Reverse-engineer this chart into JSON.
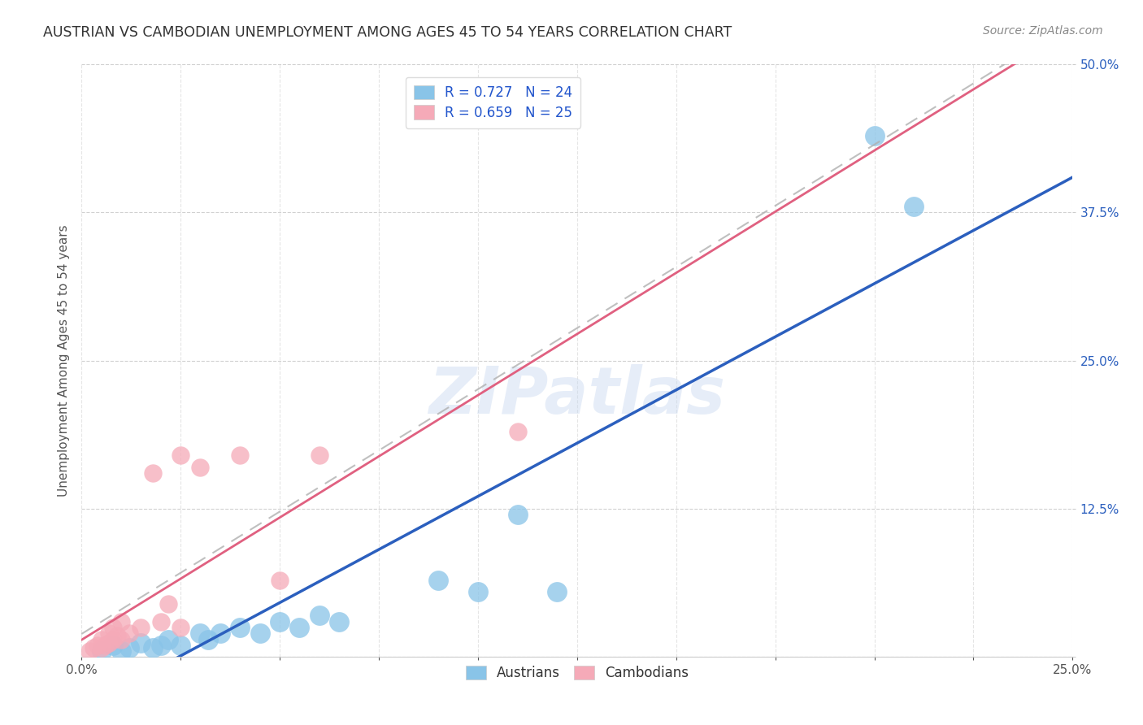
{
  "title": "AUSTRIAN VS CAMBODIAN UNEMPLOYMENT AMONG AGES 45 TO 54 YEARS CORRELATION CHART",
  "source": "Source: ZipAtlas.com",
  "ylabel": "Unemployment Among Ages 45 to 54 years",
  "xlim": [
    0.0,
    0.25
  ],
  "ylim": [
    0.0,
    0.5
  ],
  "xticks": [
    0.0,
    0.025,
    0.05,
    0.075,
    0.1,
    0.125,
    0.15,
    0.175,
    0.2,
    0.225,
    0.25
  ],
  "ytick_positions": [
    0.0,
    0.125,
    0.25,
    0.375,
    0.5
  ],
  "ytick_labels": [
    "",
    "12.5%",
    "25.0%",
    "37.5%",
    "50.0%"
  ],
  "austrians_x": [
    0.005,
    0.008,
    0.01,
    0.012,
    0.015,
    0.018,
    0.02,
    0.022,
    0.025,
    0.03,
    0.032,
    0.035,
    0.04,
    0.045,
    0.05,
    0.055,
    0.06,
    0.065,
    0.09,
    0.1,
    0.11,
    0.12,
    0.2,
    0.21
  ],
  "austrians_y": [
    0.005,
    0.01,
    0.005,
    0.008,
    0.012,
    0.008,
    0.01,
    0.015,
    0.01,
    0.02,
    0.015,
    0.02,
    0.025,
    0.02,
    0.03,
    0.025,
    0.035,
    0.03,
    0.065,
    0.055,
    0.12,
    0.055,
    0.44,
    0.38
  ],
  "cambodians_x": [
    0.002,
    0.003,
    0.004,
    0.005,
    0.005,
    0.006,
    0.007,
    0.007,
    0.008,
    0.008,
    0.009,
    0.01,
    0.01,
    0.012,
    0.015,
    0.018,
    0.02,
    0.022,
    0.025,
    0.025,
    0.03,
    0.04,
    0.05,
    0.06,
    0.11
  ],
  "cambodians_y": [
    0.005,
    0.008,
    0.01,
    0.008,
    0.015,
    0.01,
    0.012,
    0.02,
    0.015,
    0.025,
    0.018,
    0.015,
    0.03,
    0.02,
    0.025,
    0.155,
    0.03,
    0.045,
    0.025,
    0.17,
    0.16,
    0.17,
    0.065,
    0.17,
    0.19
  ],
  "R_austrians": 0.727,
  "N_austrians": 24,
  "R_cambodians": 0.659,
  "N_cambodians": 25,
  "blue_scatter_color": "#89c4e8",
  "pink_scatter_color": "#f5aab8",
  "blue_line_color": "#2b5fbe",
  "pink_line_color": "#e06080",
  "gray_dashed_color": "#b0b0b0",
  "title_color": "#333333",
  "source_color": "#888888",
  "legend_text_color": "#2255cc",
  "background_color": "#ffffff",
  "grid_color": "#cccccc",
  "watermark_color": "#c8d8f0"
}
